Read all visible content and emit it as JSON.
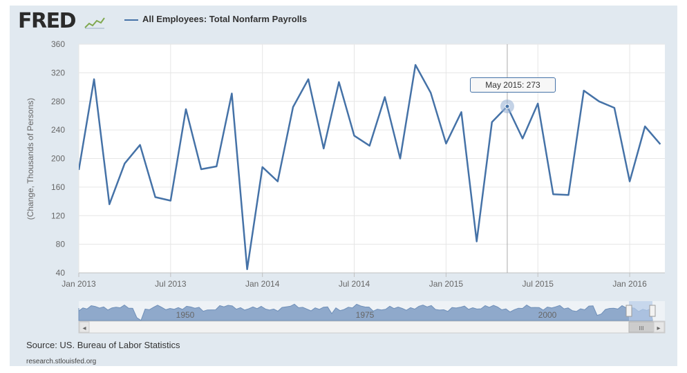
{
  "logo": {
    "text": "FRED",
    "icon": "trend-graph-icon"
  },
  "source": "Source: US. Bureau of Labor Statistics",
  "site": "research.stlouisfed.org",
  "tooltip": {
    "label": "May 2015:",
    "value": "273"
  },
  "navigator": {
    "labels": [
      "1950",
      "1975",
      "2000"
    ],
    "scroll_left": "◂",
    "scroll_right": "▸",
    "grip": "III"
  },
  "colors": {
    "series": "#4572a7",
    "grid": "#e6e6e6",
    "frame": "#e1e9f0",
    "navigator_fill": "#8fa9cb"
  },
  "chart_data": {
    "type": "line",
    "title": "",
    "legend": "All Employees: Total Nonfarm Payrolls",
    "ylabel": "(Change, Thousands of Persons)",
    "xlabel": "",
    "ylim": [
      40,
      360
    ],
    "yticks": [
      40,
      80,
      120,
      160,
      200,
      240,
      280,
      320,
      360
    ],
    "grid": true,
    "x_tick_labels": [
      "Jan 2013",
      "Jul 2013",
      "Jan 2014",
      "Jul 2014",
      "Jan 2015",
      "Jul 2015",
      "Jan 2016"
    ],
    "x_tick_months": [
      0,
      6,
      12,
      18,
      24,
      30,
      36
    ],
    "x_range_months": [
      0,
      38.3
    ],
    "highlight": {
      "month": 28,
      "value": 273,
      "label": "May 2015"
    },
    "series": [
      {
        "name": "All Employees: Total Nonfarm Payrolls",
        "months": [
          0,
          1,
          2,
          3,
          4,
          5,
          6,
          7,
          8,
          9,
          10,
          11,
          12,
          13,
          14,
          15,
          16,
          17,
          18,
          19,
          20,
          21,
          22,
          23,
          24,
          25,
          26,
          27,
          28,
          29,
          30,
          31,
          32,
          33,
          34,
          35,
          36,
          37,
          38
        ],
        "values": [
          184,
          311,
          136,
          193,
          219,
          146,
          141,
          269,
          185,
          189,
          291,
          45,
          188,
          168,
          272,
          311,
          214,
          307,
          232,
          218,
          286,
          200,
          331,
          292,
          221,
          265,
          84,
          251,
          273,
          228,
          277,
          150,
          149,
          295,
          280,
          271,
          168,
          245,
          220
        ]
      }
    ]
  }
}
